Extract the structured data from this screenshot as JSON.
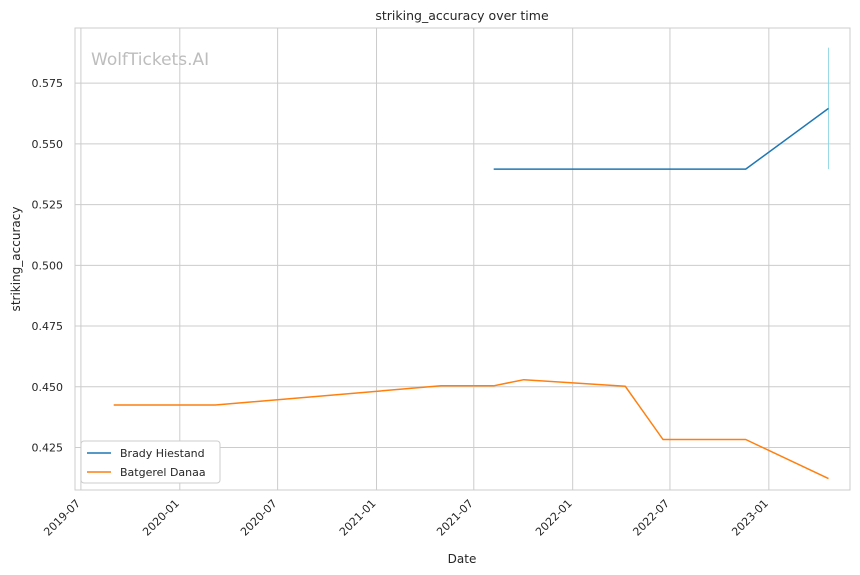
{
  "watermark": "WolfTickets.AI",
  "chart_data": {
    "type": "line",
    "title": "striking_accuracy over time",
    "xlabel": "Date",
    "ylabel": "striking_accuracy",
    "x_ticks": [
      "2019-07",
      "2020-01",
      "2020-07",
      "2021-01",
      "2021-07",
      "2022-01",
      "2022-07",
      "2023-01"
    ],
    "y_ticks": [
      0.425,
      0.45,
      0.475,
      0.5,
      0.525,
      0.55,
      0.575
    ],
    "y_tick_labels": [
      "0.425",
      "0.450",
      "0.475",
      "0.500",
      "0.525",
      "0.550",
      "0.575"
    ],
    "xlim": [
      "2019-06-20",
      "2023-06-01"
    ],
    "ylim": [
      0.4075,
      0.5977
    ],
    "grid": true,
    "legend_position": "lower-left",
    "series": [
      {
        "name": "Brady Hiestand",
        "color": "#1f77b4",
        "points": [
          {
            "x": "2021-08-07",
            "y": 0.5396
          },
          {
            "x": "2022-11-19",
            "y": 0.5396
          },
          {
            "x": "2023-04-22",
            "y": 0.5646
          }
        ]
      },
      {
        "name": "Batgerel Danaa",
        "color": "#ff7f0e",
        "points": [
          {
            "x": "2019-08-31",
            "y": 0.4425
          },
          {
            "x": "2020-03-07",
            "y": 0.4425
          },
          {
            "x": "2021-05-01",
            "y": 0.4504
          },
          {
            "x": "2021-08-07",
            "y": 0.4504
          },
          {
            "x": "2021-10-02",
            "y": 0.4529
          },
          {
            "x": "2022-04-09",
            "y": 0.4502
          },
          {
            "x": "2022-06-18",
            "y": 0.4283
          },
          {
            "x": "2022-11-19",
            "y": 0.4283
          },
          {
            "x": "2023-04-22",
            "y": 0.4122
          }
        ]
      }
    ],
    "band": {
      "color": "#7fd3e0",
      "x": "2023-04-22",
      "y_range": [
        0.5396,
        0.5896
      ]
    }
  }
}
